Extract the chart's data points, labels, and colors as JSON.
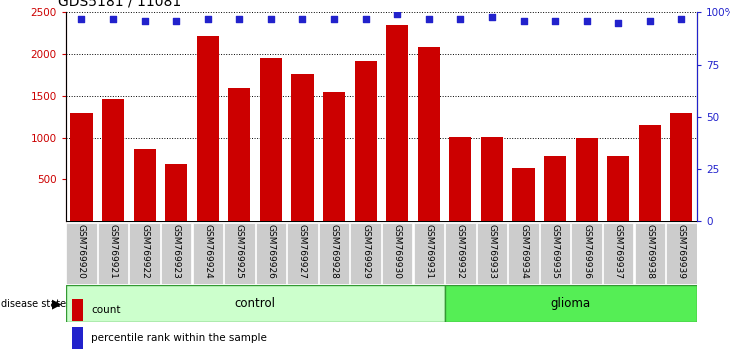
{
  "title": "GDS5181 / 11081",
  "samples": [
    "GSM769920",
    "GSM769921",
    "GSM769922",
    "GSM769923",
    "GSM769924",
    "GSM769925",
    "GSM769926",
    "GSM769927",
    "GSM769928",
    "GSM769929",
    "GSM769930",
    "GSM769931",
    "GSM769932",
    "GSM769933",
    "GSM769934",
    "GSM769935",
    "GSM769936",
    "GSM769937",
    "GSM769938",
    "GSM769939"
  ],
  "counts": [
    1300,
    1460,
    860,
    680,
    2220,
    1600,
    1950,
    1760,
    1550,
    1920,
    2350,
    2080,
    1010,
    1010,
    640,
    780,
    1000,
    780,
    1150,
    1300
  ],
  "percentiles": [
    97,
    97,
    96,
    96,
    97,
    97,
    97,
    97,
    97,
    97,
    99,
    97,
    97,
    98,
    96,
    96,
    96,
    95,
    96,
    97
  ],
  "n_control": 12,
  "n_glioma": 8,
  "bar_color": "#cc0000",
  "dot_color": "#2222cc",
  "left_ylim": [
    0,
    2500
  ],
  "right_ylim": [
    0,
    100
  ],
  "left_yticks": [
    500,
    1000,
    1500,
    2000,
    2500
  ],
  "right_yticks": [
    0,
    25,
    50,
    75,
    100
  ],
  "right_yticklabels": [
    "0",
    "25",
    "50",
    "75",
    "100%"
  ],
  "grid_values": [
    1000,
    1500,
    2000,
    2500
  ],
  "control_fill": "#ccffcc",
  "glioma_fill": "#55ee55",
  "disease_border": "#339933",
  "xlabel_box_color": "#cccccc",
  "legend_count_color": "#cc0000",
  "legend_pct_color": "#2222cc",
  "title_fontsize": 10,
  "tick_fontsize": 7.5,
  "label_fontsize": 6.5,
  "disease_fontsize": 8.5,
  "legend_fontsize": 7.5
}
